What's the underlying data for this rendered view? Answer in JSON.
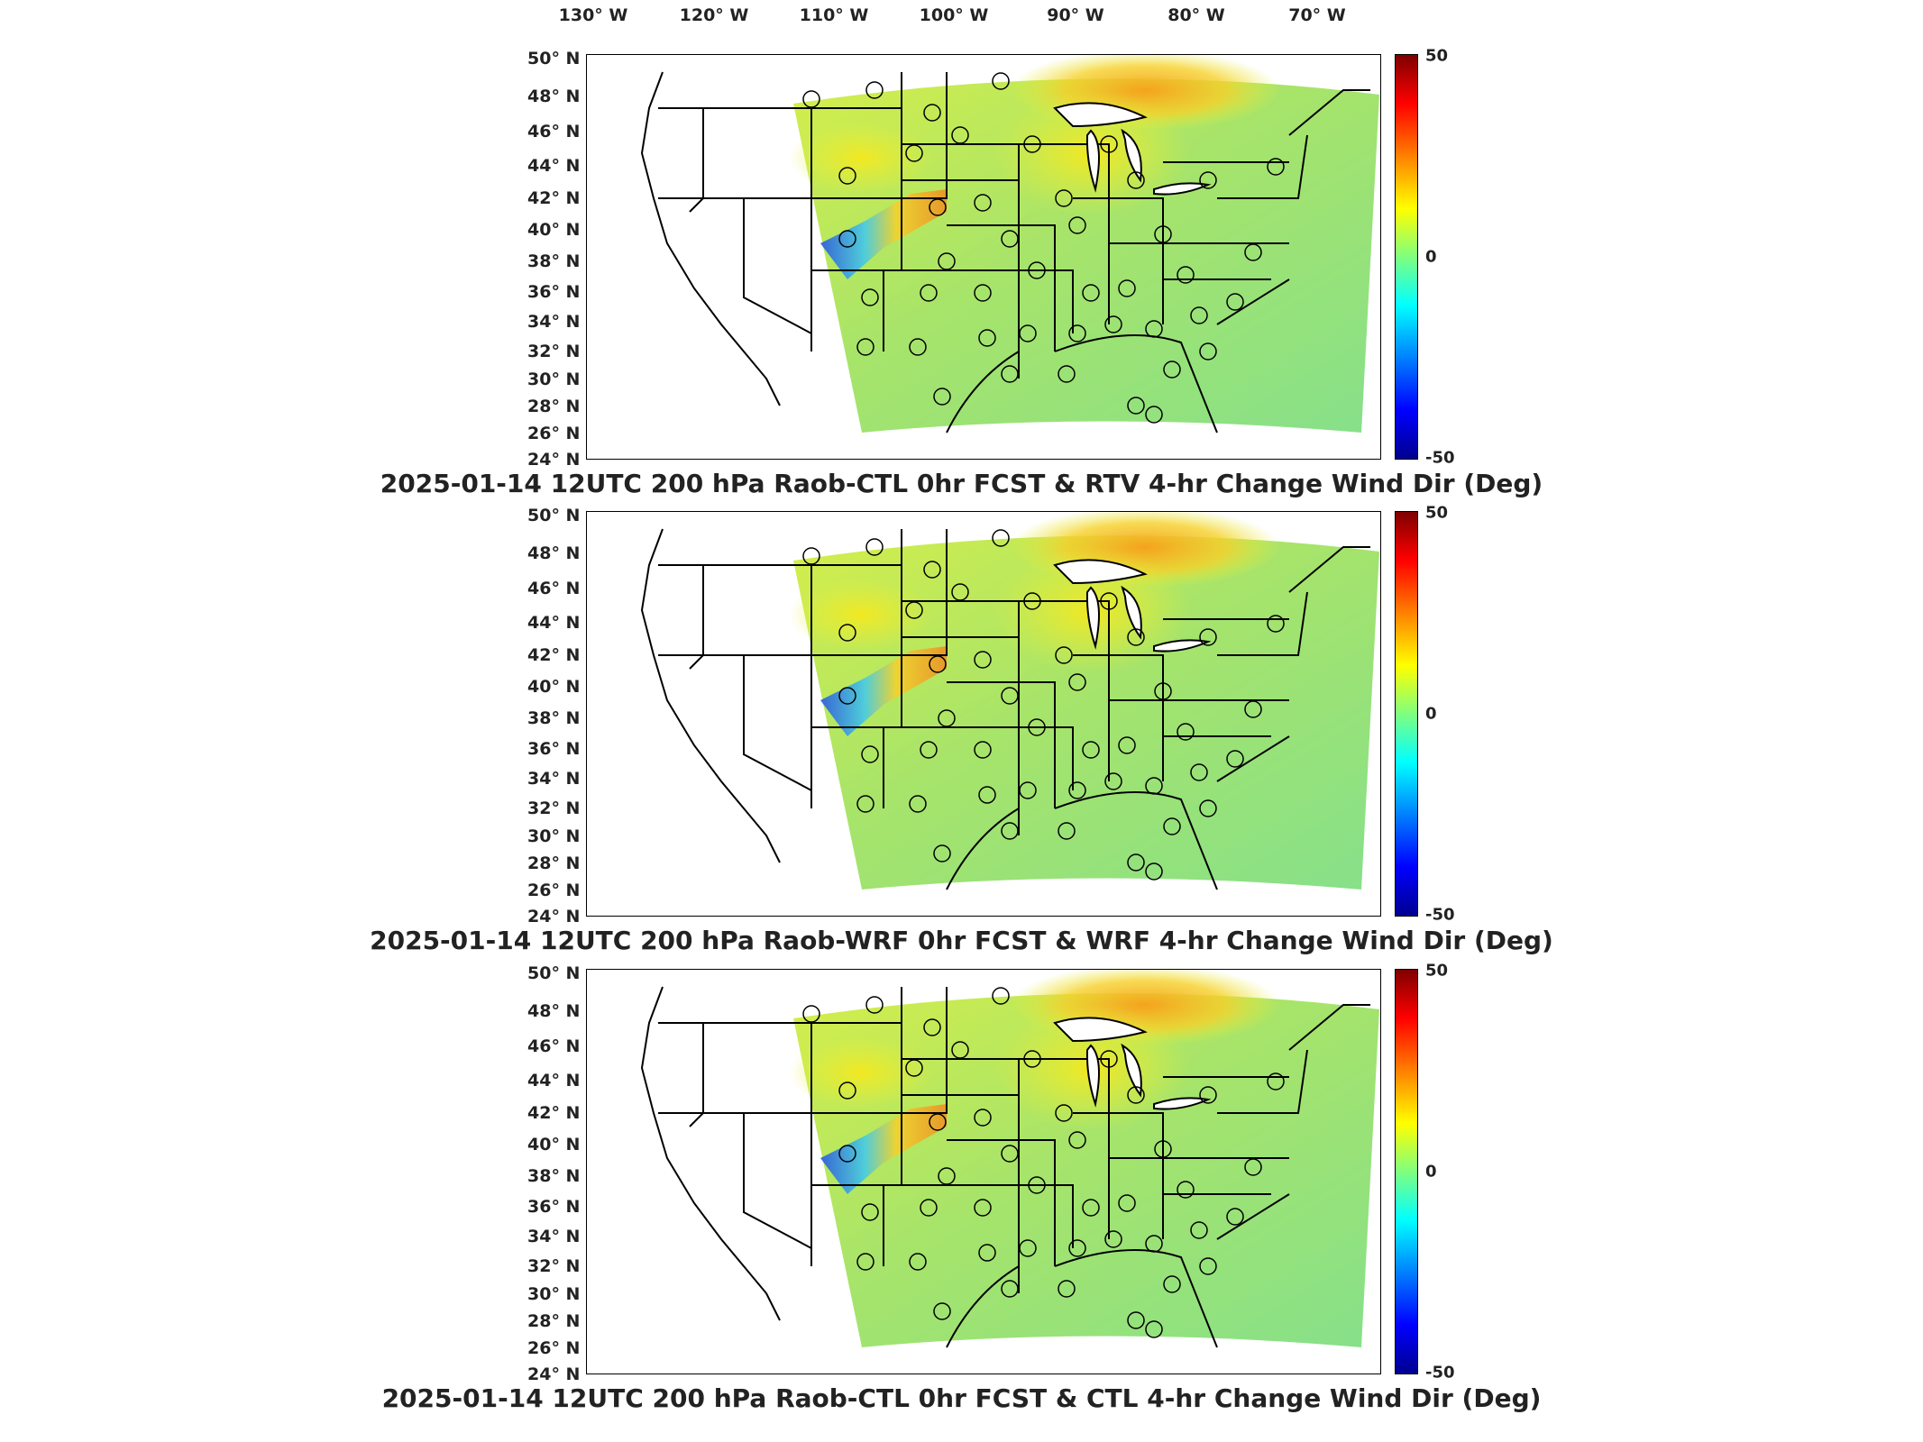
{
  "lon_labels": [
    "130° W",
    "120° W",
    "110° W",
    "100° W",
    "90° W",
    "80° W",
    "70° W"
  ],
  "lat_labels": [
    "50° N",
    "48° N",
    "46° N",
    "44° N",
    "42° N",
    "40° N",
    "38° N",
    "36° N",
    "34° N",
    "32° N",
    "30° N",
    "28° N",
    "26° N",
    "24° N"
  ],
  "colorbar": {
    "max_label": "50",
    "mid_label": "0",
    "min_label": "-50",
    "colormap": "jet",
    "range": [
      -50,
      50
    ]
  },
  "panels": [
    {
      "title": "2025-01-14 12UTC 200 hPa Raob-CTL 0hr FCST & RTV 4-hr Change Wind Dir (Deg)"
    },
    {
      "title": "2025-01-14 12UTC 200 hPa Raob-WRF 0hr FCST & WRF 4-hr Change Wind Dir (Deg)"
    },
    {
      "title": "2025-01-14 12UTC 200 hPa Raob-CTL 0hr FCST & CTL 4-hr Change Wind Dir (Deg)"
    }
  ],
  "colors": {
    "field_green": "#9de86a",
    "field_yellow": "#e8ef3a",
    "field_orange": "#f5a623",
    "field_blue": "#2b6cf0",
    "state_lines": "#000000"
  }
}
